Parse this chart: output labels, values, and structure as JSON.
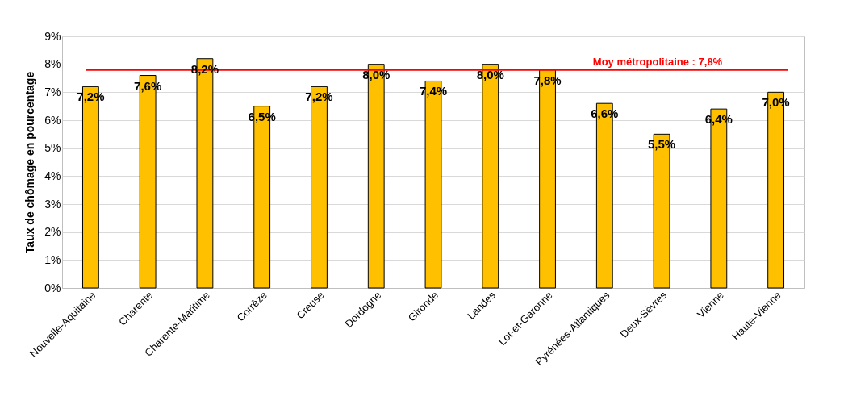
{
  "chart_data": {
    "type": "bar",
    "ylabel": "Taux de chômage en pourcentage",
    "categories": [
      "Nouvelle-Aquitaine",
      "Charente",
      "Charente-Maritime",
      "Corrèze",
      "Creuse",
      "Dordogne",
      "Gironde",
      "Landes",
      "Lot-et-Garonne",
      "Pyrénées-Atlantiques",
      "Deux-Sèvres",
      "Vienne",
      "Haute-Vienne"
    ],
    "values": [
      7.2,
      7.6,
      8.2,
      6.5,
      7.2,
      8.0,
      7.4,
      8.0,
      7.8,
      6.6,
      5.5,
      6.4,
      7.0
    ],
    "value_labels": [
      "7,2%",
      "7,6%",
      "8,2%",
      "6,5%",
      "7,2%",
      "8,0%",
      "7,4%",
      "8,0%",
      "7,8%",
      "6,6%",
      "5,5%",
      "6,4%",
      "7,0%"
    ],
    "color": "#ffc000",
    "ylim": [
      0,
      9
    ],
    "yticks": [
      {
        "value": 0,
        "label": "0%"
      },
      {
        "value": 1,
        "label": "1%"
      },
      {
        "value": 2,
        "label": "2%"
      },
      {
        "value": 3,
        "label": "3%"
      },
      {
        "value": 4,
        "label": "4%"
      },
      {
        "value": 5,
        "label": "5%"
      },
      {
        "value": 6,
        "label": "6%"
      },
      {
        "value": 7,
        "label": "7%"
      },
      {
        "value": 8,
        "label": "8%"
      },
      {
        "value": 9,
        "label": "9%"
      }
    ],
    "grid": "y",
    "ref_lines": [
      {
        "axis": "y",
        "value": 7.8,
        "label": "Moy métropolitaine : 7,8%",
        "color": "#ff0000"
      }
    ]
  }
}
